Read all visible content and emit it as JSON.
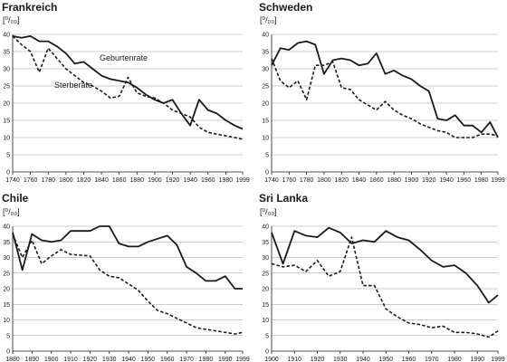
{
  "chart_data": [
    {
      "type": "line",
      "title": "Frankreich",
      "unit_label": "[⁰/₀₀]",
      "xlim": [
        1740,
        1999
      ],
      "ylim": [
        0,
        40
      ],
      "x_ticks": [
        1740,
        1760,
        1780,
        1800,
        1820,
        1840,
        1860,
        1880,
        1900,
        1920,
        1940,
        1960,
        1980,
        1999
      ],
      "y_ticks": [
        0,
        5,
        10,
        15,
        20,
        25,
        30,
        35,
        40
      ],
      "grid": true,
      "annotations": [
        "Geburtenrate",
        "Sterberate"
      ],
      "series": [
        {
          "name": "Geburtenrate",
          "style": "solid",
          "x": [
            1740,
            1750,
            1760,
            1770,
            1780,
            1790,
            1800,
            1810,
            1820,
            1830,
            1840,
            1850,
            1860,
            1870,
            1880,
            1890,
            1900,
            1910,
            1920,
            1930,
            1940,
            1950,
            1960,
            1970,
            1980,
            1990,
            1999
          ],
          "y": [
            39.5,
            39,
            39.5,
            38,
            38,
            36.5,
            34.5,
            31.5,
            32,
            30,
            28,
            27,
            26.5,
            26,
            24.5,
            22.5,
            21,
            20,
            21,
            17,
            13.5,
            21,
            18,
            17,
            15,
            13.5,
            12.5
          ]
        },
        {
          "name": "Sterberate",
          "style": "dashed",
          "x": [
            1740,
            1750,
            1760,
            1770,
            1780,
            1790,
            1800,
            1810,
            1820,
            1830,
            1840,
            1850,
            1860,
            1870,
            1880,
            1890,
            1900,
            1910,
            1920,
            1930,
            1940,
            1950,
            1960,
            1970,
            1980,
            1990,
            1999
          ],
          "y": [
            39.5,
            37,
            35,
            29,
            36,
            33,
            30,
            28,
            26,
            25,
            23.5,
            21.5,
            22,
            27.5,
            23,
            22,
            21.5,
            20,
            18,
            17,
            16,
            13,
            11.5,
            11,
            10.5,
            10,
            9.5
          ]
        }
      ]
    },
    {
      "type": "line",
      "title": "Schweden",
      "unit_label": "[⁰/₀₀]",
      "xlim": [
        1740,
        1999
      ],
      "ylim": [
        0,
        40
      ],
      "x_ticks": [
        1740,
        1760,
        1780,
        1800,
        1820,
        1840,
        1860,
        1880,
        1900,
        1920,
        1940,
        1960,
        1980,
        1999
      ],
      "y_ticks": [
        0,
        5,
        10,
        15,
        20,
        25,
        30,
        35,
        40
      ],
      "grid": true,
      "series": [
        {
          "name": "Geburtenrate",
          "style": "solid",
          "x": [
            1740,
            1750,
            1760,
            1770,
            1780,
            1790,
            1800,
            1810,
            1820,
            1830,
            1840,
            1850,
            1860,
            1870,
            1880,
            1890,
            1900,
            1910,
            1920,
            1930,
            1940,
            1950,
            1960,
            1970,
            1980,
            1990,
            1999
          ],
          "y": [
            31,
            36,
            35.5,
            37.5,
            38,
            37,
            28.5,
            32.5,
            33,
            32.5,
            31,
            31.5,
            34.5,
            28.5,
            29.5,
            28,
            27,
            25,
            23.5,
            15.5,
            15,
            16.5,
            13.5,
            13.5,
            11.5,
            14.5,
            10
          ]
        },
        {
          "name": "Sterberate",
          "style": "dashed",
          "x": [
            1740,
            1750,
            1760,
            1770,
            1780,
            1790,
            1800,
            1810,
            1820,
            1830,
            1840,
            1850,
            1860,
            1870,
            1880,
            1890,
            1900,
            1910,
            1920,
            1930,
            1940,
            1950,
            1960,
            1970,
            1980,
            1990,
            1999
          ],
          "y": [
            33,
            26.5,
            24.5,
            26.5,
            21,
            31,
            31,
            32,
            24.5,
            24,
            21,
            19.5,
            18,
            20.5,
            18,
            16.5,
            15.5,
            14,
            13,
            12,
            11.5,
            10,
            10,
            10,
            11,
            11,
            10.5
          ]
        }
      ]
    },
    {
      "type": "line",
      "title": "Chile",
      "unit_label": "[⁰/₀₀]",
      "xlim": [
        1880,
        1999
      ],
      "ylim": [
        0,
        40
      ],
      "x_ticks": [
        1880,
        1890,
        1900,
        1910,
        1920,
        1930,
        1940,
        1950,
        1960,
        1970,
        1980,
        1990,
        1999
      ],
      "y_ticks": [
        0,
        5,
        10,
        15,
        20,
        25,
        30,
        35,
        40
      ],
      "grid": true,
      "series": [
        {
          "name": "Geburtenrate",
          "style": "solid",
          "x": [
            1880,
            1885,
            1890,
            1895,
            1900,
            1905,
            1910,
            1915,
            1920,
            1925,
            1930,
            1935,
            1940,
            1945,
            1950,
            1955,
            1960,
            1965,
            1970,
            1975,
            1980,
            1985,
            1990,
            1995,
            1999
          ],
          "y": [
            38,
            26,
            37.5,
            35.5,
            35,
            35.5,
            38.5,
            38.5,
            38.5,
            40,
            40,
            34.5,
            33.5,
            33.5,
            35,
            36,
            37,
            34,
            27,
            25,
            22.5,
            22.5,
            24,
            20,
            20
          ]
        },
        {
          "name": "Sterberate",
          "style": "dashed",
          "x": [
            1880,
            1885,
            1890,
            1895,
            1900,
            1905,
            1910,
            1920,
            1925,
            1930,
            1935,
            1940,
            1945,
            1950,
            1955,
            1960,
            1965,
            1970,
            1975,
            1980,
            1985,
            1990,
            1995,
            1999
          ],
          "y": [
            37.5,
            30,
            35.5,
            28,
            30.5,
            32.5,
            31,
            30.5,
            26,
            24,
            23.5,
            21.5,
            19.5,
            16,
            13,
            12,
            10.5,
            9,
            7.5,
            7,
            6.5,
            6,
            5.5,
            6
          ]
        }
      ]
    },
    {
      "type": "line",
      "title": "Sri Lanka",
      "unit_label": "[⁰/₀₀]",
      "xlim": [
        1900,
        1999
      ],
      "ylim": [
        0,
        40
      ],
      "x_ticks": [
        1900,
        1910,
        1920,
        1930,
        1940,
        1950,
        1960,
        1970,
        1980,
        1990,
        1999
      ],
      "y_ticks": [
        0,
        5,
        10,
        15,
        20,
        25,
        30,
        35,
        40
      ],
      "grid": true,
      "series": [
        {
          "name": "Geburtenrate",
          "style": "solid",
          "x": [
            1900,
            1905,
            1910,
            1915,
            1920,
            1925,
            1930,
            1935,
            1940,
            1945,
            1950,
            1955,
            1960,
            1965,
            1970,
            1975,
            1980,
            1985,
            1990,
            1995,
            1999
          ],
          "y": [
            38,
            28,
            38.5,
            37,
            36.5,
            39.5,
            38,
            34.5,
            35.5,
            35,
            38.5,
            36.5,
            35.5,
            32.5,
            29,
            27,
            27.5,
            25,
            21,
            15.5,
            18
          ]
        },
        {
          "name": "Sterberate",
          "style": "dashed",
          "x": [
            1900,
            1905,
            1910,
            1915,
            1920,
            1925,
            1930,
            1935,
            1940,
            1945,
            1950,
            1955,
            1960,
            1965,
            1970,
            1975,
            1980,
            1985,
            1990,
            1995,
            1999
          ],
          "y": [
            28,
            27,
            27.5,
            25.5,
            29,
            24,
            25.5,
            36.5,
            21,
            21,
            13.5,
            11,
            9,
            8.5,
            7.5,
            8,
            6,
            6,
            5.5,
            4.5,
            6.5
          ]
        }
      ]
    }
  ]
}
